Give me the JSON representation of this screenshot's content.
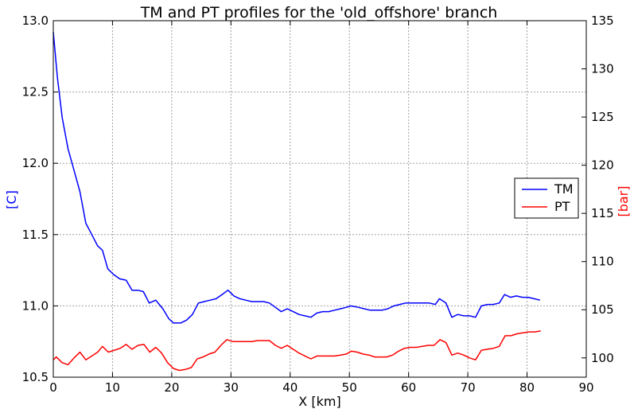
{
  "chart_data": {
    "type": "line",
    "title": "TM and PT profiles for the 'old_offshore' branch",
    "xlabel": "X [km]",
    "ylabel_left": "[C]",
    "ylabel_right": "[bar]",
    "ylabel_left_color": "#0000ff",
    "ylabel_right_color": "#ff0000",
    "xlim": [
      0,
      90
    ],
    "ylim_left": [
      10.5,
      13.0
    ],
    "ylim_right": [
      98,
      135
    ],
    "x_ticks": [
      0,
      10,
      20,
      30,
      40,
      50,
      60,
      70,
      80,
      90
    ],
    "y_left_ticks": [
      10.5,
      11.0,
      11.5,
      12.0,
      12.5,
      13.0
    ],
    "y_left_tick_labels": [
      "10.5",
      "11.0",
      "11.5",
      "12.0",
      "12.5",
      "13.0"
    ],
    "y_right_ticks": [
      100,
      105,
      110,
      115,
      120,
      125,
      130,
      135
    ],
    "grid": true,
    "legend_position": "center-right",
    "series": [
      {
        "name": "TM",
        "axis": "left",
        "color": "#0000ff",
        "x": [
          0,
          0.7,
          1.5,
          2.5,
          3.5,
          4.5,
          5.5,
          6.5,
          7.5,
          8.3,
          9.2,
          10.2,
          11.2,
          12.3,
          13.3,
          14.3,
          15.2,
          16.2,
          17.3,
          18.5,
          19.5,
          20.3,
          21.5,
          22.5,
          23.5,
          24.5,
          25.5,
          26.5,
          27.5,
          28.5,
          29.5,
          30.5,
          31.5,
          32.5,
          33.5,
          34.5,
          35.5,
          36.5,
          37.5,
          38.5,
          39.5,
          40.5,
          41.5,
          42.5,
          43.5,
          44.5,
          45.5,
          46.5,
          47.5,
          48.5,
          49.5,
          50.2,
          51.5,
          52.5,
          53.5,
          54.5,
          55.5,
          56.5,
          57.5,
          58.5,
          59.5,
          60.5,
          61.5,
          62.5,
          63.5,
          64.5,
          65.2,
          66.3,
          67.3,
          68.3,
          69.3,
          70.3,
          71.3,
          72.3,
          73.3,
          74.3,
          75.3,
          76.2,
          77.2,
          78.2,
          79.2,
          80.2,
          81.2,
          82.2
        ],
        "values": [
          12.92,
          12.6,
          12.32,
          12.1,
          11.95,
          11.8,
          11.58,
          11.5,
          11.42,
          11.39,
          11.26,
          11.22,
          11.19,
          11.18,
          11.11,
          11.11,
          11.1,
          11.02,
          11.04,
          10.98,
          10.91,
          10.88,
          10.88,
          10.9,
          10.94,
          11.02,
          11.03,
          11.04,
          11.05,
          11.08,
          11.11,
          11.07,
          11.05,
          11.04,
          11.03,
          11.03,
          11.03,
          11.02,
          10.99,
          10.96,
          10.98,
          10.96,
          10.94,
          10.93,
          10.92,
          10.95,
          10.96,
          10.96,
          10.97,
          10.98,
          10.99,
          11.0,
          10.99,
          10.98,
          10.97,
          10.97,
          10.97,
          10.98,
          11.0,
          11.01,
          11.02,
          11.02,
          11.02,
          11.02,
          11.02,
          11.01,
          11.05,
          11.02,
          10.92,
          10.94,
          10.93,
          10.93,
          10.92,
          11.0,
          11.01,
          11.01,
          11.02,
          11.08,
          11.06,
          11.07,
          11.06,
          11.06,
          11.05,
          11.04
        ]
      },
      {
        "name": "PT",
        "axis": "right",
        "color": "#ff0000",
        "x": [
          0,
          0.5,
          1.5,
          2.5,
          3.5,
          4.5,
          5.5,
          6.5,
          7.5,
          8.3,
          9.3,
          10.3,
          11.3,
          12.3,
          13.3,
          14.3,
          15.3,
          16.3,
          17.3,
          18.3,
          19.3,
          20.3,
          21.3,
          22.3,
          23.3,
          24.3,
          25.3,
          26.3,
          27.3,
          28.3,
          29.3,
          30.3,
          31.5,
          32.5,
          33.5,
          34.5,
          35.5,
          36.5,
          37.5,
          38.5,
          39.5,
          40.5,
          41.5,
          42.5,
          43.5,
          44.5,
          45.5,
          46.5,
          47.5,
          48.5,
          49.5,
          50.3,
          51.3,
          52.3,
          53.3,
          54.3,
          55.3,
          56.3,
          57.3,
          58.3,
          59.3,
          60.3,
          61.3,
          62.3,
          63.3,
          64.3,
          65.3,
          66.3,
          67.3,
          68.3,
          69.3,
          70.3,
          71.3,
          72.3,
          73.3,
          74.3,
          75.3,
          76.3,
          77.3,
          78.3,
          79.3,
          80.3,
          81.3,
          82.3
        ],
        "values": [
          99.8,
          100.1,
          99.5,
          99.3,
          100.0,
          100.6,
          99.8,
          100.2,
          100.6,
          101.2,
          100.6,
          100.8,
          101.0,
          101.4,
          100.9,
          101.3,
          101.4,
          100.6,
          101.1,
          100.5,
          99.5,
          98.9,
          98.7,
          98.8,
          99.0,
          99.9,
          100.1,
          100.4,
          100.6,
          101.3,
          101.9,
          101.7,
          101.7,
          101.7,
          101.7,
          101.8,
          101.8,
          101.8,
          101.3,
          101.0,
          101.3,
          100.9,
          100.5,
          100.2,
          99.9,
          100.2,
          100.2,
          100.2,
          100.2,
          100.3,
          100.4,
          100.7,
          100.6,
          100.4,
          100.3,
          100.1,
          100.1,
          100.1,
          100.3,
          100.7,
          101.0,
          101.1,
          101.1,
          101.2,
          101.3,
          101.3,
          101.9,
          101.6,
          100.3,
          100.5,
          100.3,
          100.0,
          99.8,
          100.8,
          100.9,
          101.0,
          101.2,
          102.3,
          102.3,
          102.5,
          102.6,
          102.7,
          102.7,
          102.8
        ]
      }
    ]
  }
}
